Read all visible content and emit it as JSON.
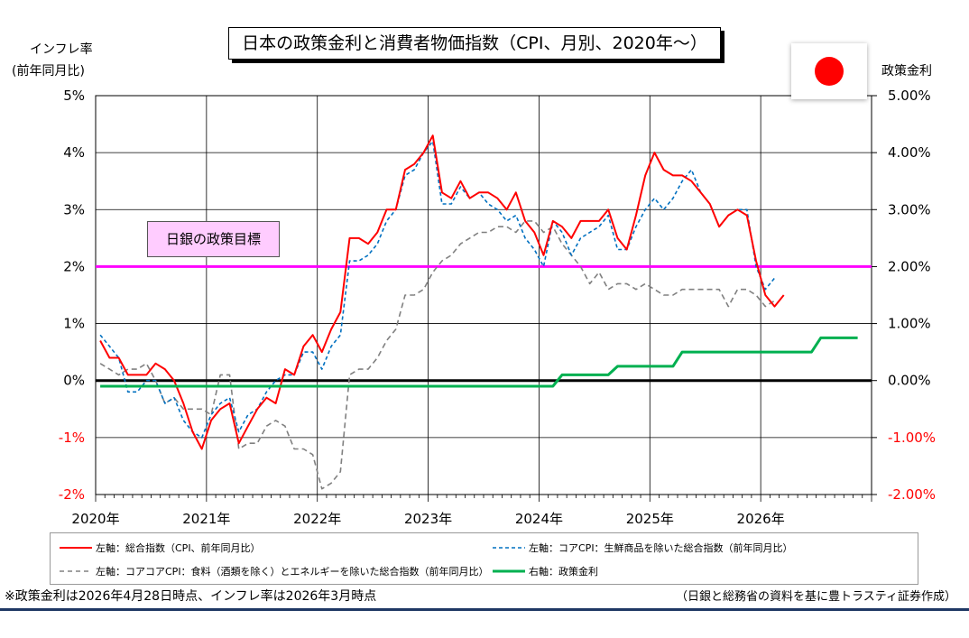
{
  "chart_data": {
    "type": "line",
    "title": "日本の政策金利と消費者物価指数（CPI、月別、2020年～）",
    "left_axis_title": [
      "インフレ率",
      "(前年同月比)"
    ],
    "right_axis_title": "政策金利",
    "left_ticks": [
      "5%",
      "4%",
      "3%",
      "2%",
      "1%",
      "0%",
      "-1%",
      "-2%"
    ],
    "right_ticks": [
      "5.00%",
      "4.00%",
      "3.00%",
      "2.00%",
      "1.00%",
      "0.00%",
      "-1.00%",
      "-2.00%"
    ],
    "ylim": [
      -2,
      5
    ],
    "x_labels": [
      "2020年",
      "2021年",
      "2022年",
      "2023年",
      "2024年",
      "2025年",
      "2026年"
    ],
    "target_label": "日銀の政策目標",
    "target_value": 2.0,
    "series": [
      {
        "name": "左軸：総合指数（CPI、前年同月比）",
        "color": "#ff0000",
        "dash": "solid",
        "values": [
          0.7,
          0.4,
          0.4,
          0.1,
          0.1,
          0.1,
          0.3,
          0.2,
          0.0,
          -0.4,
          -0.9,
          -1.2,
          -0.7,
          -0.5,
          -0.4,
          -1.1,
          -0.8,
          -0.5,
          -0.3,
          -0.4,
          0.2,
          0.1,
          0.6,
          0.8,
          0.5,
          0.9,
          1.2,
          2.5,
          2.5,
          2.4,
          2.6,
          3.0,
          3.0,
          3.7,
          3.8,
          4.0,
          4.3,
          3.3,
          3.2,
          3.5,
          3.2,
          3.3,
          3.3,
          3.2,
          3.0,
          3.3,
          2.8,
          2.6,
          2.2,
          2.8,
          2.7,
          2.5,
          2.8,
          2.8,
          2.8,
          3.0,
          2.5,
          2.3,
          2.9,
          3.6,
          4.0,
          3.7,
          3.6,
          3.6,
          3.5,
          3.3,
          3.1,
          2.7,
          2.9,
          3.0,
          2.9,
          2.1,
          1.5,
          1.3,
          1.5
        ]
      },
      {
        "name": "左軸：コアCPI：生鮮商品を除いた総合指数（前年同月比）",
        "color": "#0070c0",
        "dash": "dashed",
        "values": [
          0.8,
          0.6,
          0.4,
          -0.2,
          -0.2,
          0.0,
          0.0,
          -0.4,
          -0.3,
          -0.7,
          -0.9,
          -1.0,
          -0.6,
          -0.4,
          -0.3,
          -0.9,
          -0.6,
          -0.5,
          -0.2,
          0.0,
          0.1,
          0.1,
          0.5,
          0.5,
          0.2,
          0.6,
          0.8,
          2.1,
          2.1,
          2.2,
          2.4,
          2.8,
          3.0,
          3.6,
          3.7,
          4.0,
          4.2,
          3.1,
          3.1,
          3.4,
          3.2,
          3.3,
          3.1,
          3.0,
          2.8,
          2.9,
          2.5,
          2.3,
          2.0,
          2.8,
          2.6,
          2.2,
          2.5,
          2.6,
          2.7,
          2.9,
          2.3,
          2.3,
          2.7,
          3.0,
          3.2,
          3.0,
          3.2,
          3.5,
          3.7,
          3.3,
          3.1,
          2.7,
          2.9,
          3.0,
          3.0,
          2.0,
          1.6,
          1.8
        ]
      },
      {
        "name": "左軸：コアコアCPI：食料（酒類を除く）とエネルギーを除いた総合指数（前年同月比）",
        "color": "#808080",
        "dash": "dashed",
        "values": [
          0.3,
          0.2,
          0.1,
          0.2,
          0.2,
          0.3,
          0.0,
          -0.4,
          -0.3,
          -0.5,
          -0.5,
          -0.5,
          -0.6,
          0.1,
          0.1,
          -1.2,
          -1.1,
          -1.1,
          -0.8,
          -0.7,
          -0.8,
          -1.2,
          -1.2,
          -1.3,
          -1.9,
          -1.8,
          -1.6,
          0.1,
          0.2,
          0.2,
          0.4,
          0.7,
          0.9,
          1.5,
          1.5,
          1.6,
          1.9,
          2.1,
          2.2,
          2.4,
          2.5,
          2.6,
          2.6,
          2.7,
          2.7,
          2.6,
          2.8,
          2.8,
          2.6,
          2.7,
          2.4,
          2.2,
          2.0,
          1.7,
          1.9,
          1.6,
          1.7,
          1.7,
          1.6,
          1.7,
          1.6,
          1.5,
          1.5,
          1.6,
          1.6,
          1.6,
          1.6,
          1.6,
          1.3,
          1.6,
          1.6,
          1.5,
          1.3,
          1.4
        ]
      },
      {
        "name": "右軸：政策金利",
        "color": "#00b050",
        "dash": "solid",
        "values": [
          -0.1,
          -0.1,
          -0.1,
          -0.1,
          -0.1,
          -0.1,
          -0.1,
          -0.1,
          -0.1,
          -0.1,
          -0.1,
          -0.1,
          -0.1,
          -0.1,
          -0.1,
          -0.1,
          -0.1,
          -0.1,
          -0.1,
          -0.1,
          -0.1,
          -0.1,
          -0.1,
          -0.1,
          -0.1,
          -0.1,
          -0.1,
          -0.1,
          -0.1,
          -0.1,
          -0.1,
          -0.1,
          -0.1,
          -0.1,
          -0.1,
          -0.1,
          -0.1,
          -0.1,
          -0.1,
          -0.1,
          -0.1,
          -0.1,
          -0.1,
          -0.1,
          -0.1,
          -0.1,
          -0.1,
          -0.1,
          -0.1,
          -0.1,
          0.1,
          0.1,
          0.1,
          0.1,
          0.1,
          0.1,
          0.25,
          0.25,
          0.25,
          0.25,
          0.25,
          0.25,
          0.25,
          0.5,
          0.5,
          0.5,
          0.5,
          0.5,
          0.5,
          0.5,
          0.5,
          0.5,
          0.5,
          0.5,
          0.5,
          0.5,
          0.5,
          0.5,
          0.75,
          0.75,
          0.75,
          0.75,
          0.75
        ]
      }
    ]
  },
  "footnote": "※政策金利は2026年4月28日時点、インフレ率は2026年3月時点",
  "source": "（日銀と総務省の資料を基に豊トラスティ証券作成）"
}
